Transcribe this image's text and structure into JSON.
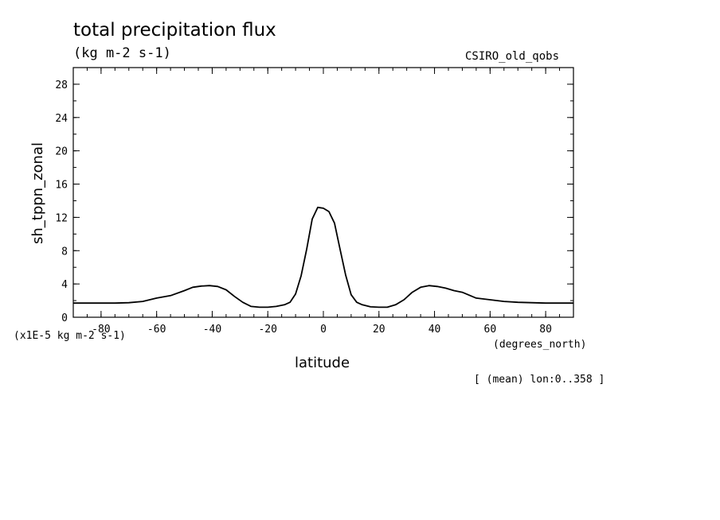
{
  "chart_data": {
    "type": "line",
    "title": "total precipitation flux",
    "units_label": "(kg m-2 s-1)",
    "dataset_label": "CSIRO_old_qobs",
    "xlabel": "latitude",
    "xunits": "(degrees_north)",
    "ylabel": "sh_tppn_zonal",
    "scale_note": "(x1E-5 kg m-2 s-1)",
    "footnote": "[ (mean) lon:0..358 ]",
    "xlim": [
      -90,
      90
    ],
    "ylim": [
      0,
      30
    ],
    "x_ticks": [
      -80,
      -60,
      -40,
      -20,
      0,
      20,
      40,
      60,
      80
    ],
    "x_tick_labels": [
      "-80",
      "-60",
      "-40",
      "-20",
      "0",
      "20",
      "40",
      "60",
      "80"
    ],
    "y_ticks": [
      0,
      4,
      8,
      12,
      16,
      20,
      24,
      28
    ],
    "y_tick_labels": [
      "0",
      "4",
      "8",
      "12",
      "16",
      "20",
      "24",
      "28"
    ],
    "grid": false,
    "series": [
      {
        "color": "#000000",
        "x": [
          -90,
          -85,
          -80,
          -75,
          -70,
          -65,
          -60,
          -55,
          -50,
          -47,
          -44,
          -41,
          -38,
          -35,
          -32,
          -29,
          -26,
          -23,
          -20,
          -17,
          -14,
          -12,
          -10,
          -8,
          -6,
          -4,
          -2,
          0,
          2,
          4,
          6,
          8,
          10,
          12,
          14,
          17,
          20,
          23,
          26,
          29,
          32,
          35,
          38,
          41,
          44,
          47,
          50,
          55,
          60,
          65,
          70,
          75,
          80,
          85,
          90
        ],
        "y": [
          1.7,
          1.7,
          1.7,
          1.7,
          1.75,
          1.9,
          2.3,
          2.6,
          3.2,
          3.6,
          3.75,
          3.8,
          3.7,
          3.3,
          2.5,
          1.8,
          1.3,
          1.2,
          1.2,
          1.3,
          1.5,
          1.8,
          2.8,
          5.0,
          8.2,
          11.8,
          13.2,
          13.1,
          12.7,
          11.3,
          8.2,
          5.1,
          2.7,
          1.8,
          1.5,
          1.25,
          1.2,
          1.2,
          1.5,
          2.1,
          3.0,
          3.6,
          3.8,
          3.7,
          3.5,
          3.2,
          3.0,
          2.3,
          2.1,
          1.9,
          1.8,
          1.75,
          1.7,
          1.7,
          1.7
        ]
      }
    ]
  }
}
